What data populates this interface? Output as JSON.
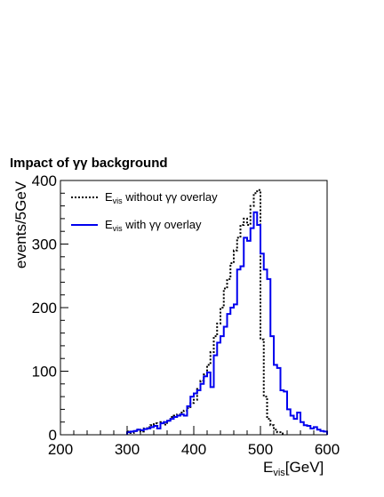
{
  "chart_data": {
    "type": "line",
    "title": "Impact of γγ background",
    "ylabel": "events/5GeV",
    "xlabel": {
      "main": "E",
      "sub": "vis",
      "unit": "[GeV]"
    },
    "xlim": [
      200,
      600
    ],
    "ylim": [
      0,
      400
    ],
    "x_ticks": [
      "200",
      "300",
      "400",
      "500",
      "600"
    ],
    "y_ticks": [
      "0",
      "100",
      "200",
      "300",
      "400"
    ],
    "bin_width": 5,
    "legend_position": "top-left",
    "series": [
      {
        "legend": {
          "main": "E",
          "sub": "vis",
          "rest": " without γγ overlay"
        },
        "style": "dotted",
        "color": "#000000",
        "bins": [
          [
            300,
            5
          ],
          [
            305,
            3
          ],
          [
            310,
            6
          ],
          [
            315,
            8
          ],
          [
            320,
            5
          ],
          [
            325,
            10
          ],
          [
            330,
            12
          ],
          [
            335,
            15
          ],
          [
            340,
            18
          ],
          [
            345,
            14
          ],
          [
            350,
            20
          ],
          [
            355,
            16
          ],
          [
            360,
            22
          ],
          [
            365,
            28
          ],
          [
            370,
            30
          ],
          [
            375,
            32
          ],
          [
            380,
            35
          ],
          [
            385,
            38
          ],
          [
            390,
            42
          ],
          [
            395,
            50
          ],
          [
            400,
            55
          ],
          [
            405,
            72
          ],
          [
            410,
            85
          ],
          [
            415,
            95
          ],
          [
            420,
            110
          ],
          [
            425,
            130
          ],
          [
            430,
            155
          ],
          [
            435,
            175
          ],
          [
            440,
            200
          ],
          [
            445,
            230
          ],
          [
            450,
            245
          ],
          [
            455,
            270
          ],
          [
            460,
            290
          ],
          [
            465,
            310
          ],
          [
            470,
            330
          ],
          [
            475,
            340
          ],
          [
            480,
            330
          ],
          [
            485,
            360
          ],
          [
            490,
            380
          ],
          [
            495,
            385
          ],
          [
            500,
            150
          ],
          [
            505,
            60
          ],
          [
            510,
            25
          ],
          [
            515,
            15
          ],
          [
            520,
            8
          ],
          [
            525,
            4
          ],
          [
            530,
            2
          ]
        ]
      },
      {
        "legend": {
          "main": "E",
          "sub": "vis",
          "rest": " with γγ overlay"
        },
        "style": "solid",
        "color": "#0000ee",
        "bins": [
          [
            300,
            4
          ],
          [
            305,
            5
          ],
          [
            310,
            6
          ],
          [
            315,
            8
          ],
          [
            320,
            7
          ],
          [
            325,
            9
          ],
          [
            330,
            10
          ],
          [
            335,
            12
          ],
          [
            340,
            14
          ],
          [
            345,
            10
          ],
          [
            350,
            18
          ],
          [
            355,
            20
          ],
          [
            360,
            22
          ],
          [
            365,
            25
          ],
          [
            370,
            28
          ],
          [
            375,
            30
          ],
          [
            380,
            32
          ],
          [
            385,
            30
          ],
          [
            390,
            45
          ],
          [
            395,
            60
          ],
          [
            400,
            65
          ],
          [
            405,
            70
          ],
          [
            410,
            80
          ],
          [
            415,
            92
          ],
          [
            420,
            98
          ],
          [
            425,
            75
          ],
          [
            430,
            125
          ],
          [
            435,
            145
          ],
          [
            440,
            155
          ],
          [
            445,
            170
          ],
          [
            450,
            190
          ],
          [
            455,
            200
          ],
          [
            460,
            205
          ],
          [
            465,
            260
          ],
          [
            470,
            265
          ],
          [
            475,
            310
          ],
          [
            480,
            305
          ],
          [
            485,
            325
          ],
          [
            490,
            350
          ],
          [
            495,
            330
          ],
          [
            500,
            285
          ],
          [
            505,
            260
          ],
          [
            510,
            245
          ],
          [
            515,
            155
          ],
          [
            520,
            110
          ],
          [
            525,
            105
          ],
          [
            530,
            70
          ],
          [
            535,
            68
          ],
          [
            540,
            40
          ],
          [
            545,
            30
          ],
          [
            550,
            25
          ],
          [
            555,
            35
          ],
          [
            560,
            20
          ],
          [
            565,
            15
          ],
          [
            570,
            14
          ],
          [
            575,
            10
          ],
          [
            580,
            12
          ],
          [
            585,
            8
          ],
          [
            590,
            6
          ],
          [
            595,
            5
          ]
        ]
      }
    ]
  }
}
